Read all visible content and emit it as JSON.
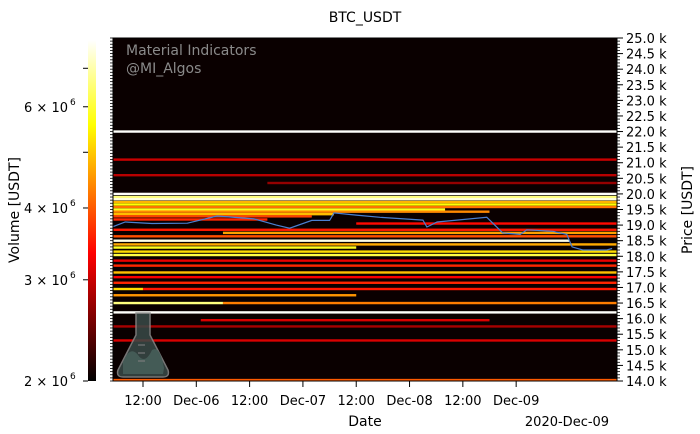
{
  "chart_data": {
    "type": "heatmap",
    "title": "BTC_USDT",
    "xlabel": "Date",
    "ylabel_right": "Price [USDT]",
    "colorbar_label": "Volume [USDT]",
    "x_offset_label": "2020-Dec-09",
    "watermark": [
      "Material Indicators",
      "@MI_Algos"
    ],
    "x_unit": "hours since 2020-12-05 00:00",
    "xlim": [
      5.25,
      118.7
    ],
    "x_ticks": [
      {
        "hour": 12,
        "label": "12:00"
      },
      {
        "hour": 24,
        "label": "Dec-06"
      },
      {
        "hour": 36,
        "label": "12:00"
      },
      {
        "hour": 48,
        "label": "Dec-07"
      },
      {
        "hour": 60,
        "label": "12:00"
      },
      {
        "hour": 72,
        "label": "Dec-08"
      },
      {
        "hour": 84,
        "label": "12:00"
      },
      {
        "hour": 96,
        "label": "Dec-09"
      }
    ],
    "ylim": [
      14000,
      25000
    ],
    "y_ticks": [
      {
        "value": 14000,
        "label": "14.0 k"
      },
      {
        "value": 14500,
        "label": "14.5 k"
      },
      {
        "value": 15000,
        "label": "15.0 k"
      },
      {
        "value": 15500,
        "label": "15.5 k"
      },
      {
        "value": 16000,
        "label": "16.0 k"
      },
      {
        "value": 16500,
        "label": "16.5 k"
      },
      {
        "value": 17000,
        "label": "17.0 k"
      },
      {
        "value": 17500,
        "label": "17.5 k"
      },
      {
        "value": 18000,
        "label": "18.0 k"
      },
      {
        "value": 18500,
        "label": "18.5 k"
      },
      {
        "value": 19000,
        "label": "19.0 k"
      },
      {
        "value": 19500,
        "label": "19.5 k"
      },
      {
        "value": 20000,
        "label": "20.0 k"
      },
      {
        "value": 20500,
        "label": "20.5 k"
      },
      {
        "value": 21000,
        "label": "21.0 k"
      },
      {
        "value": 21500,
        "label": "21.5 k"
      },
      {
        "value": 22000,
        "label": "22.0 k"
      },
      {
        "value": 22500,
        "label": "22.5 k"
      },
      {
        "value": 23000,
        "label": "23.0 k"
      },
      {
        "value": 23500,
        "label": "23.5 k"
      },
      {
        "value": 24000,
        "label": "24.0 k"
      },
      {
        "value": 24500,
        "label": "24.5 k"
      },
      {
        "value": 25000,
        "label": "25.0 k"
      }
    ],
    "colorbar": {
      "scale": "log",
      "range": [
        2000000,
        7840000
      ],
      "ticks": [
        {
          "value": 2000000,
          "base": "2 × 10",
          "exp": "6"
        },
        {
          "value": 3000000,
          "base": "3 × 10",
          "exp": "6"
        },
        {
          "value": 4000000,
          "base": "4 × 10",
          "exp": "6"
        },
        {
          "value": 6000000,
          "base": "6 × 10",
          "exp": "6"
        }
      ],
      "minor_ticks": [
        5000000,
        7000000
      ],
      "colormap": "hot"
    },
    "levels_columns": [
      "price",
      "start_hour",
      "end_hour",
      "volume_millions"
    ],
    "levels": [
      [
        22000,
        5.25,
        118.7,
        7.8
      ],
      [
        21100,
        5.25,
        118.7,
        3.0
      ],
      [
        20600,
        5.25,
        118.7,
        2.9
      ],
      [
        20350,
        40,
        118.7,
        2.7
      ],
      [
        20000,
        5.25,
        118.7,
        7.8
      ],
      [
        19900,
        5.25,
        118.7,
        6.6
      ],
      [
        19830,
        5.25,
        118.7,
        7.5
      ],
      [
        19740,
        5.25,
        118.7,
        4.8
      ],
      [
        19660,
        5.25,
        118.7,
        5.6
      ],
      [
        19580,
        5.25,
        118.7,
        4.2
      ],
      [
        19500,
        5.25,
        80,
        5.8
      ],
      [
        19430,
        5.25,
        90,
        4.4
      ],
      [
        19350,
        5.25,
        55,
        4.9
      ],
      [
        19280,
        5.25,
        50,
        3.8
      ],
      [
        19180,
        5.25,
        40,
        3.6
      ],
      [
        19050,
        60,
        118.7,
        3.4
      ],
      [
        18850,
        5.25,
        118.7,
        3.5
      ],
      [
        18750,
        30,
        118.7,
        4.6
      ],
      [
        18640,
        5.25,
        118.7,
        3.9
      ],
      [
        18500,
        5.25,
        108,
        7.6
      ],
      [
        18380,
        5.25,
        118.7,
        4.7
      ],
      [
        18280,
        5.25,
        60,
        5.8
      ],
      [
        18150,
        5.25,
        118.7,
        5.2
      ],
      [
        18040,
        5.25,
        118.7,
        6.1
      ],
      [
        17860,
        5.25,
        118.7,
        3.2
      ],
      [
        17700,
        5.25,
        118.7,
        3.6
      ],
      [
        17480,
        5.25,
        118.7,
        4.9
      ],
      [
        17330,
        5.25,
        118.7,
        3.3
      ],
      [
        17150,
        5.25,
        118.7,
        3.6
      ],
      [
        16950,
        5.25,
        12,
        5.2
      ],
      [
        16950,
        12,
        118.7,
        3.5
      ],
      [
        16750,
        5.25,
        60,
        4.5
      ],
      [
        16500,
        5.25,
        30,
        6.6
      ],
      [
        16500,
        30,
        118.7,
        4.3
      ],
      [
        16200,
        5.25,
        118.7,
        7.8
      ],
      [
        15950,
        25,
        90,
        3.1
      ],
      [
        15750,
        5.25,
        118.7,
        2.8
      ],
      [
        15300,
        5.25,
        118.7,
        3.1
      ],
      [
        14030,
        5.25,
        118.7,
        4.0
      ]
    ],
    "series": [
      {
        "name": "price",
        "color": "#4a7fd0",
        "points": [
          [
            5.25,
            18950
          ],
          [
            8,
            19100
          ],
          [
            14,
            19050
          ],
          [
            22,
            19060
          ],
          [
            28.7,
            19290
          ],
          [
            37,
            19200
          ],
          [
            42,
            19000
          ],
          [
            45,
            18900
          ],
          [
            50,
            19150
          ],
          [
            54,
            19150
          ],
          [
            55,
            19390
          ],
          [
            60,
            19320
          ],
          [
            65.4,
            19250
          ],
          [
            75,
            19160
          ],
          [
            75.9,
            18940
          ],
          [
            78.2,
            19100
          ],
          [
            89.4,
            19250
          ],
          [
            93,
            18750
          ],
          [
            96.9,
            18700
          ],
          [
            98.4,
            18850
          ],
          [
            104.3,
            18800
          ],
          [
            107.4,
            18700
          ],
          [
            108.6,
            18300
          ],
          [
            111,
            18200
          ],
          [
            116.4,
            18200
          ],
          [
            117.6,
            18250
          ]
        ]
      }
    ]
  }
}
